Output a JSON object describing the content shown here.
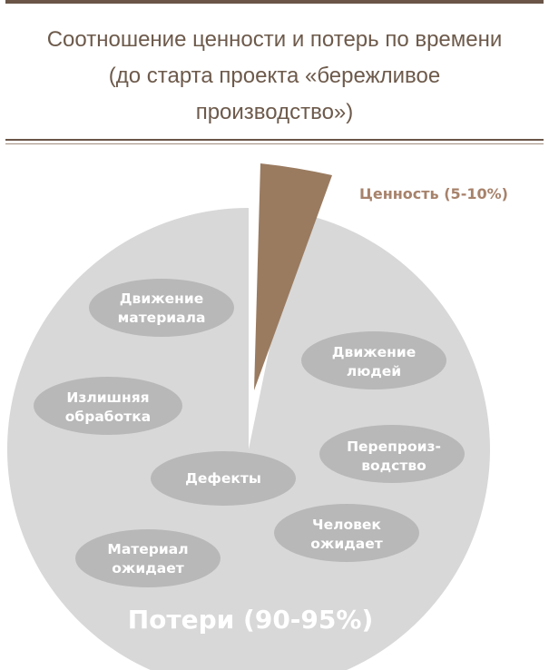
{
  "title": {
    "line1": "Соотношение ценности и потерь по времени",
    "line2": "(до старта проекта «бережливое",
    "line3": "производство»)"
  },
  "segments": {
    "value_label": "Ценность (5-10%)",
    "loss_label": "Потери (90-95%)"
  },
  "loss_types": [
    {
      "line1": "Движение",
      "line2": "материала"
    },
    {
      "line1": "Излишняя",
      "line2": "обработка"
    },
    {
      "line1": "Дефекты",
      "line2": ""
    },
    {
      "line1": "Материал",
      "line2": "ожидает"
    },
    {
      "line1": "Движение",
      "line2": "людей"
    },
    {
      "line1": "Перепроиз-",
      "line2": "водство"
    },
    {
      "line1": "Человек",
      "line2": "ожидает"
    }
  ],
  "colors": {
    "value": "#9a7b60",
    "loss": "#d8d8d8",
    "oval": "#b8b8b8",
    "title": "#6d5a4b"
  }
}
